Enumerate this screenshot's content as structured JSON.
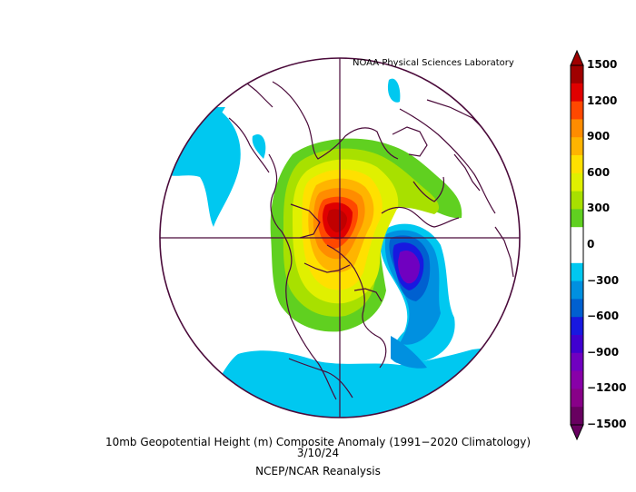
{
  "header": {
    "credit": "NOAA Physical Sciences Laboratory"
  },
  "caption": {
    "line1": "10mb Geopotential Height (m) Composite Anomaly (1991−2020 Climatology)",
    "line2": "3/10/24",
    "line3": "NCEP/NCAR Reanalysis"
  },
  "colorbar": {
    "labels": [
      "1500",
      "1200",
      "900",
      "600",
      "300",
      "0",
      "−300",
      "−600",
      "−900",
      "−1200",
      "−1500"
    ],
    "colors": [
      "#a00000",
      "#e00000",
      "#ff4800",
      "#ff8c00",
      "#ffb400",
      "#ffe000",
      "#e0f000",
      "#a8e000",
      "#60d020",
      "#ffffff",
      "#ffffff",
      "#00c8f0",
      "#0090e0",
      "#0060d0",
      "#1818e0",
      "#4000d0",
      "#7000c0",
      "#8800a8",
      "#880088",
      "#680060"
    ]
  }
}
